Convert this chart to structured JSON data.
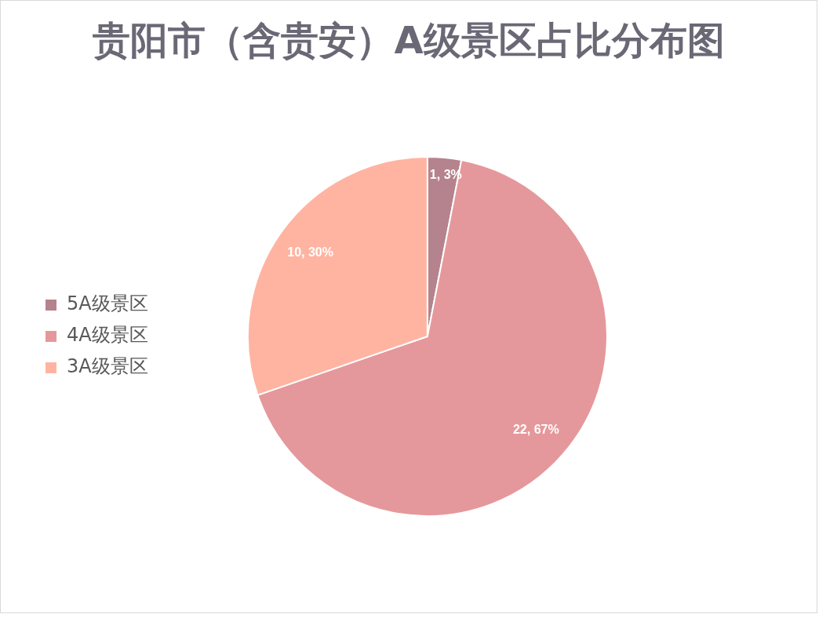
{
  "chart_data": {
    "type": "pie",
    "title": "贵阳市（含贵安）A级景区占比分布图",
    "categories": [
      "5A级景区",
      "4A级景区",
      "3A级景区"
    ],
    "values": [
      1,
      22,
      10
    ],
    "colors": [
      "#b5838d",
      "#e5989b",
      "#ffb4a2"
    ],
    "value_labels": [
      "1, 3%",
      "22, 67%",
      "10, 30%"
    ],
    "legend": "left"
  }
}
